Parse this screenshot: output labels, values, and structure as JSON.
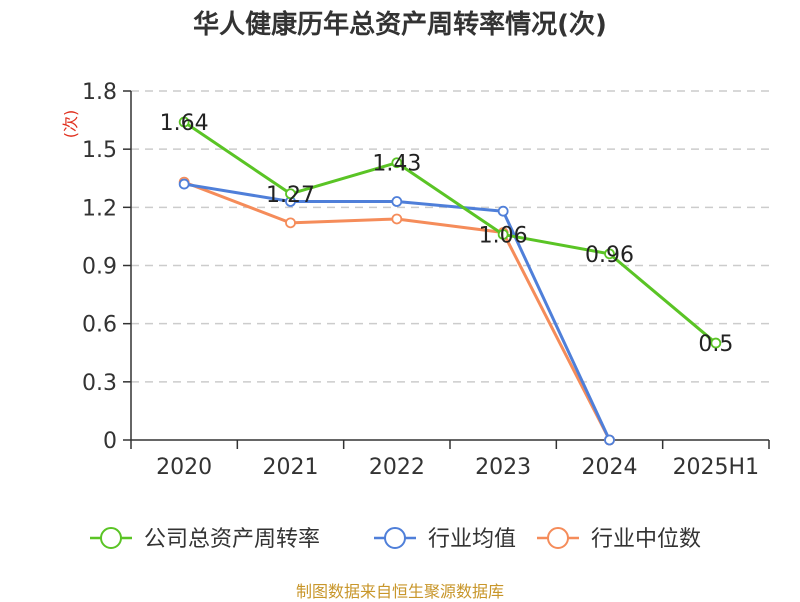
{
  "title": "华人健康历年总资产周转率情况(次)",
  "source": "制图数据来自恒生聚源数据库",
  "chart_data": {
    "type": "line",
    "title": "华人健康历年总资产周转率情况(次)",
    "ylabel": "(次)",
    "xlabel": "",
    "categories": [
      "2020",
      "2021",
      "2022",
      "2023",
      "2024",
      "2025H1"
    ],
    "ylim": [
      0,
      1.8
    ],
    "yticks": [
      0,
      0.3,
      0.6,
      0.9,
      1.2,
      1.5,
      1.8
    ],
    "ytick_labels": [
      "0",
      "0.3",
      "0.6",
      "0.9",
      "1.2",
      "1.5",
      "1.8"
    ],
    "grid": true,
    "legend_position": "bottom",
    "series": [
      {
        "name": "公司总资产周转率",
        "color": "#5ac425",
        "values": [
          1.64,
          1.27,
          1.43,
          1.06,
          0.96,
          0.5
        ],
        "labels": [
          "1.64",
          "1.27",
          "1.43",
          "1.06",
          "0.96",
          "0.5"
        ]
      },
      {
        "name": "行业均值",
        "color": "#4f7fd9",
        "values": [
          1.32,
          1.23,
          1.23,
          1.18,
          0.0,
          null
        ],
        "labels": null
      },
      {
        "name": "行业中位数",
        "color": "#f58c5a",
        "values": [
          1.33,
          1.12,
          1.14,
          1.07,
          0.0,
          null
        ],
        "labels": null
      }
    ]
  }
}
